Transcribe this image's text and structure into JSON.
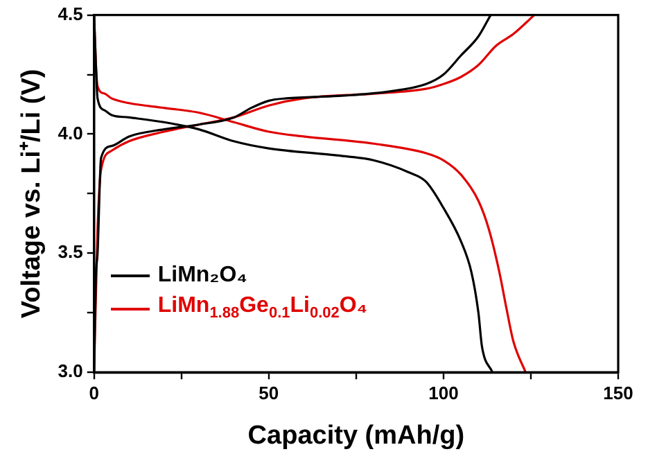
{
  "chart_data": {
    "type": "line",
    "xlabel": "Capacity (mAh/g)",
    "ylabel": "Voltage vs. Li⁺/Li (V)",
    "xlim": [
      0,
      150
    ],
    "xticks": [
      0,
      {
        "value": 25,
        "label": null
      },
      50,
      {
        "value": 75,
        "label": null
      },
      100,
      {
        "value": 125,
        "label": null
      },
      150
    ],
    "ylim": [
      3.0,
      4.5
    ],
    "yticks": [
      {
        "value": 3.0,
        "label": "3.0"
      },
      {
        "value": 3.25,
        "label": null
      },
      {
        "value": 3.5,
        "label": "3.5"
      },
      {
        "value": 3.75,
        "label": null
      },
      {
        "value": 4.0,
        "label": "4.0"
      },
      {
        "value": 4.25,
        "label": null
      },
      {
        "value": 4.5,
        "label": "4.5"
      }
    ],
    "grid": false,
    "legend": "bottom left",
    "marker": "none",
    "line_style": "solid",
    "series": [
      {
        "name": "LiMn₂O₄",
        "color": "#000000",
        "x": [
          0,
          0.5,
          1,
          2,
          5,
          10,
          20,
          30,
          40,
          45,
          50,
          55,
          70,
          85,
          95,
          100,
          105,
          110,
          113.5,
          null,
          0,
          0.5,
          1,
          3,
          5,
          10,
          20,
          30,
          40,
          50,
          70,
          80,
          90,
          95,
          100,
          105,
          108,
          110,
          111,
          114
        ],
        "values": [
          3.0,
          3.4,
          3.5,
          3.9,
          3.95,
          3.99,
          4.02,
          4.04,
          4.07,
          4.11,
          4.14,
          4.15,
          4.16,
          4.18,
          4.21,
          4.25,
          4.33,
          4.41,
          4.5,
          null,
          4.5,
          4.3,
          4.15,
          4.1,
          4.08,
          4.07,
          4.05,
          4.02,
          3.97,
          3.94,
          3.91,
          3.89,
          3.84,
          3.8,
          3.69,
          3.55,
          3.42,
          3.25,
          3.11,
          3.0
        ]
      },
      {
        "name": "LiMn$_{1.88}$Ge$_{0.1}$Li$_{0.02}$O₄",
        "color": "#e00000",
        "x": [
          0,
          1,
          2,
          5,
          10,
          20,
          30,
          40,
          50,
          60,
          80,
          95,
          100,
          105,
          110,
          115,
          120,
          126,
          null,
          0,
          0.5,
          1,
          3,
          5,
          10,
          20,
          30,
          40,
          50,
          60,
          80,
          95,
          100,
          105,
          110,
          113,
          116,
          118,
          120,
          123.5
        ],
        "values": [
          3.0,
          3.6,
          3.85,
          3.93,
          3.97,
          4.01,
          4.04,
          4.07,
          4.12,
          4.15,
          4.17,
          4.19,
          4.21,
          4.24,
          4.29,
          4.37,
          4.42,
          4.5,
          null,
          4.5,
          4.3,
          4.2,
          4.17,
          4.15,
          4.13,
          4.11,
          4.09,
          4.05,
          4.01,
          3.99,
          3.96,
          3.92,
          3.89,
          3.83,
          3.72,
          3.6,
          3.42,
          3.27,
          3.13,
          3.0
        ]
      }
    ]
  }
}
